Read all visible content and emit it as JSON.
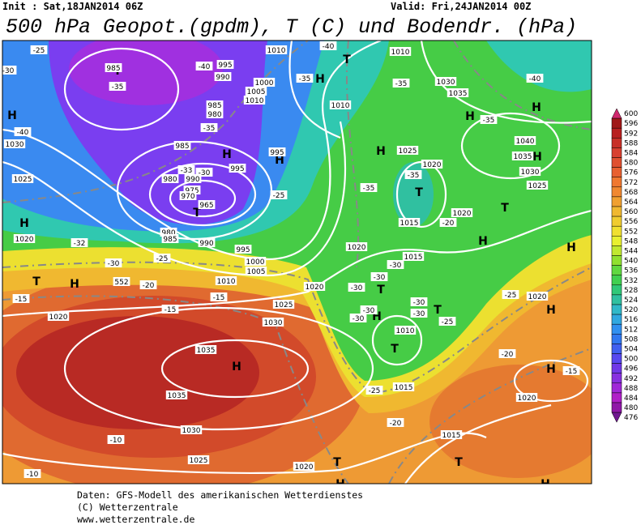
{
  "header": {
    "init": "Init : Sat,18JAN2014 06Z",
    "valid": "Valid: Fri,24JAN2014 00Z",
    "title": "500 hPa Geopot.(gpdm), T (C) und Bodendr. (hPa)"
  },
  "footer": {
    "lines": [
      "Daten: GFS-Modell des amerikanischen Wetterdienstes",
      "(C) Wetterzentrale",
      "www.wetterzentrale.de"
    ]
  },
  "colorbar": {
    "levels": [
      "600",
      "596",
      "592",
      "588",
      "584",
      "580",
      "576",
      "572",
      "568",
      "564",
      "560",
      "556",
      "552",
      "548",
      "544",
      "540",
      "536",
      "532",
      "528",
      "524",
      "520",
      "516",
      "512",
      "508",
      "504",
      "500",
      "496",
      "492",
      "488",
      "484",
      "480",
      "476"
    ],
    "colors": [
      "#d0286e",
      "#a01818",
      "#b82020",
      "#c83028",
      "#d84030",
      "#e05030",
      "#e86030",
      "#f07830",
      "#f08830",
      "#f0a030",
      "#f0b830",
      "#f0cc30",
      "#f0e030",
      "#e8f030",
      "#c0e830",
      "#90e030",
      "#60d840",
      "#40d050",
      "#30c878",
      "#30c0a0",
      "#30b8c8",
      "#30a8e0",
      "#3090f0",
      "#3078f0",
      "#4060f0",
      "#5848f0",
      "#7038e8",
      "#8830e0",
      "#a028d8",
      "#b020c8",
      "#9018a8",
      "#701890"
    ]
  },
  "map": {
    "markers": [
      "H",
      "H",
      "H",
      "H",
      "H",
      "H",
      "H",
      "H",
      "H",
      "H",
      "H",
      "H",
      "H",
      "H",
      "H",
      "H",
      "H",
      "H",
      "T",
      "T",
      "T",
      "T",
      "T",
      "T",
      "T",
      "T",
      "T",
      "T",
      "T"
    ],
    "labels": [
      "995",
      "990",
      "985",
      "-35",
      "-40",
      "995",
      "990",
      "1010",
      "-40",
      "1010",
      "-25",
      "-30",
      "1000",
      "1005",
      "1010",
      "985",
      "980",
      "-35",
      "-40",
      "1030",
      "985",
      "-33",
      "-30",
      "980",
      "990",
      "975",
      "970",
      "965",
      "995",
      "995",
      "-25",
      "1025",
      "1020",
      "980",
      "985",
      "990",
      "-32",
      "-30",
      "-25",
      "995",
      "1000",
      "1005",
      "1010",
      "-35",
      "1010",
      "1025",
      "1020",
      "-35",
      "-35",
      "1015",
      "1020",
      "1015",
      "-30",
      "-30",
      "-20",
      "1020",
      "1030",
      "1035",
      "-35",
      "-35",
      "-40",
      "1040",
      "1035",
      "1030",
      "1025",
      "-20",
      "-15",
      "-15",
      "-15",
      "1025",
      "1020",
      "-30",
      "-30",
      "-30",
      "-30",
      "-30",
      "-25",
      "1010",
      "1020",
      "1030",
      "1035",
      "1035",
      "1030",
      "-10",
      "1025",
      "1020",
      "-10",
      "-25",
      "1015",
      "-20",
      "1015",
      "1020",
      "-15",
      "-20",
      "-25",
      "1020",
      "552"
    ]
  }
}
